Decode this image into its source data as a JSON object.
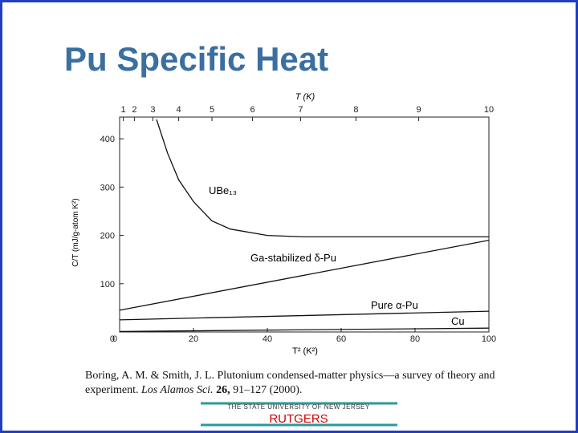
{
  "chart_data": {
    "type": "line",
    "title": "Pu Specific Heat",
    "x_label": "T² (K²)",
    "y_label": "C/T (mJ/g-atom K²)",
    "xlim": [
      0,
      100
    ],
    "xticks": [
      0,
      20,
      40,
      60,
      80,
      100
    ],
    "ylim": [
      0,
      445
    ],
    "yticks": [
      0,
      100,
      200,
      300,
      400
    ],
    "top_axis": {
      "label": "T (K)",
      "scale": "square",
      "ticks": [
        1,
        2,
        3,
        4,
        5,
        6,
        7,
        8,
        9,
        10
      ]
    },
    "series": [
      {
        "name": "UBe₁₃",
        "color": "#111111",
        "x": [
          10,
          13,
          16,
          20,
          25,
          30,
          40,
          50,
          100
        ],
        "values": [
          440,
          370,
          315,
          270,
          230,
          213,
          200,
          197,
          197
        ]
      },
      {
        "name": "Ga-stabilized δ-Pu",
        "color": "#111111",
        "x": [
          0,
          100
        ],
        "values": [
          45,
          190
        ]
      },
      {
        "name": "Pure α-Pu",
        "color": "#111111",
        "x": [
          0,
          100
        ],
        "values": [
          25,
          43
        ]
      },
      {
        "name": "Cu",
        "color": "#111111",
        "x": [
          0,
          100
        ],
        "values": [
          1,
          8
        ]
      }
    ]
  },
  "citation": {
    "line1": "Boring, A. M. & Smith, J. L. Plutonium condensed-matter physics—a survey of theory and",
    "line2": [
      "experiment. ",
      "Los Alamos Sci.",
      " 26,",
      " 91–127 (2000)."
    ]
  },
  "footer": {
    "university": "THE STATE UNIVERSITY OF NEW JERSEY",
    "name": "RUTGERS"
  }
}
